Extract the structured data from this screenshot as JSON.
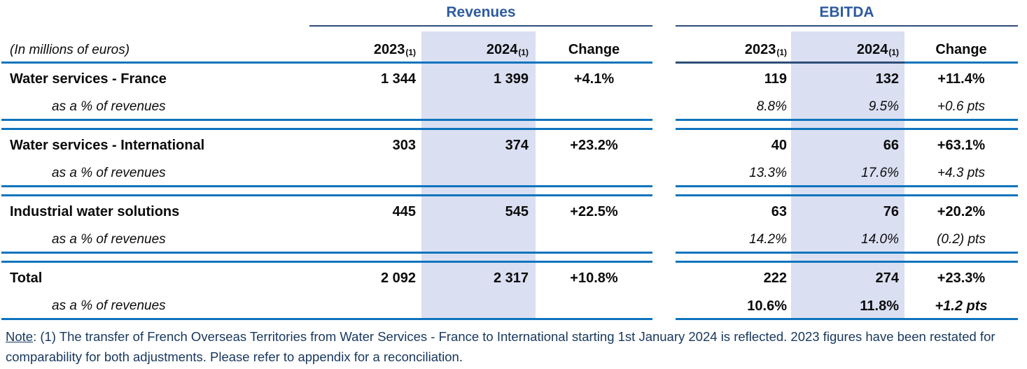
{
  "page": {
    "units_label": "(In millions of euros)",
    "group_headers": {
      "revenues": "Revenues",
      "ebitda": "EBITDA"
    },
    "columns": {
      "y2023": "2023",
      "y2024": "2024",
      "footnote_ref": "(1)",
      "change": "Change"
    },
    "sub_row_label": "as a % of revenues",
    "rows": [
      {
        "label": "Water services - France",
        "revenues": {
          "y2023": "1 344",
          "y2024": "1 399",
          "change": "+4.1%"
        },
        "ebitda": {
          "y2023": "119",
          "y2024": "132",
          "change": "+11.4%"
        },
        "ebitda_pct": {
          "y2023": "8.8%",
          "y2024": "9.5%",
          "change": "+0.6 pts"
        }
      },
      {
        "label": "Water services - International",
        "revenues": {
          "y2023": "303",
          "y2024": "374",
          "change": "+23.2%"
        },
        "ebitda": {
          "y2023": "40",
          "y2024": "66",
          "change": "+63.1%"
        },
        "ebitda_pct": {
          "y2023": "13.3%",
          "y2024": "17.6%",
          "change": "+4.3 pts"
        }
      },
      {
        "label": "Industrial water solutions",
        "revenues": {
          "y2023": "445",
          "y2024": "545",
          "change": "+22.5%"
        },
        "ebitda": {
          "y2023": "63",
          "y2024": "76",
          "change": "+20.2%"
        },
        "ebitda_pct": {
          "y2023": "14.2%",
          "y2024": "14.0%",
          "change": "(0.2) pts"
        }
      },
      {
        "label": "Total",
        "revenues": {
          "y2023": "2 092",
          "y2024": "2 317",
          "change": "+10.8%"
        },
        "ebitda": {
          "y2023": "222",
          "y2024": "274",
          "change": "+23.3%"
        },
        "ebitda_pct": {
          "y2023": "10.6%",
          "y2024": "11.8%",
          "change": "+1.2 pts"
        }
      }
    ],
    "note": {
      "label": "Note",
      "text": ": (1) The transfer of French Overseas Territories from Water Services - France to International starting 1st January 2024 is reflected. 2023 figures have been restated for comparability for both adjustments. Please refer to appendix for a reconciliation."
    },
    "colors": {
      "group_header_text": "#2E5B9E",
      "rule_blue": "#0F74BC",
      "rule_navy": "#2E4D78",
      "highlight_2024_column": "#DADFF2",
      "note_text": "#17375E",
      "body_text": "#0B0B0B"
    }
  }
}
